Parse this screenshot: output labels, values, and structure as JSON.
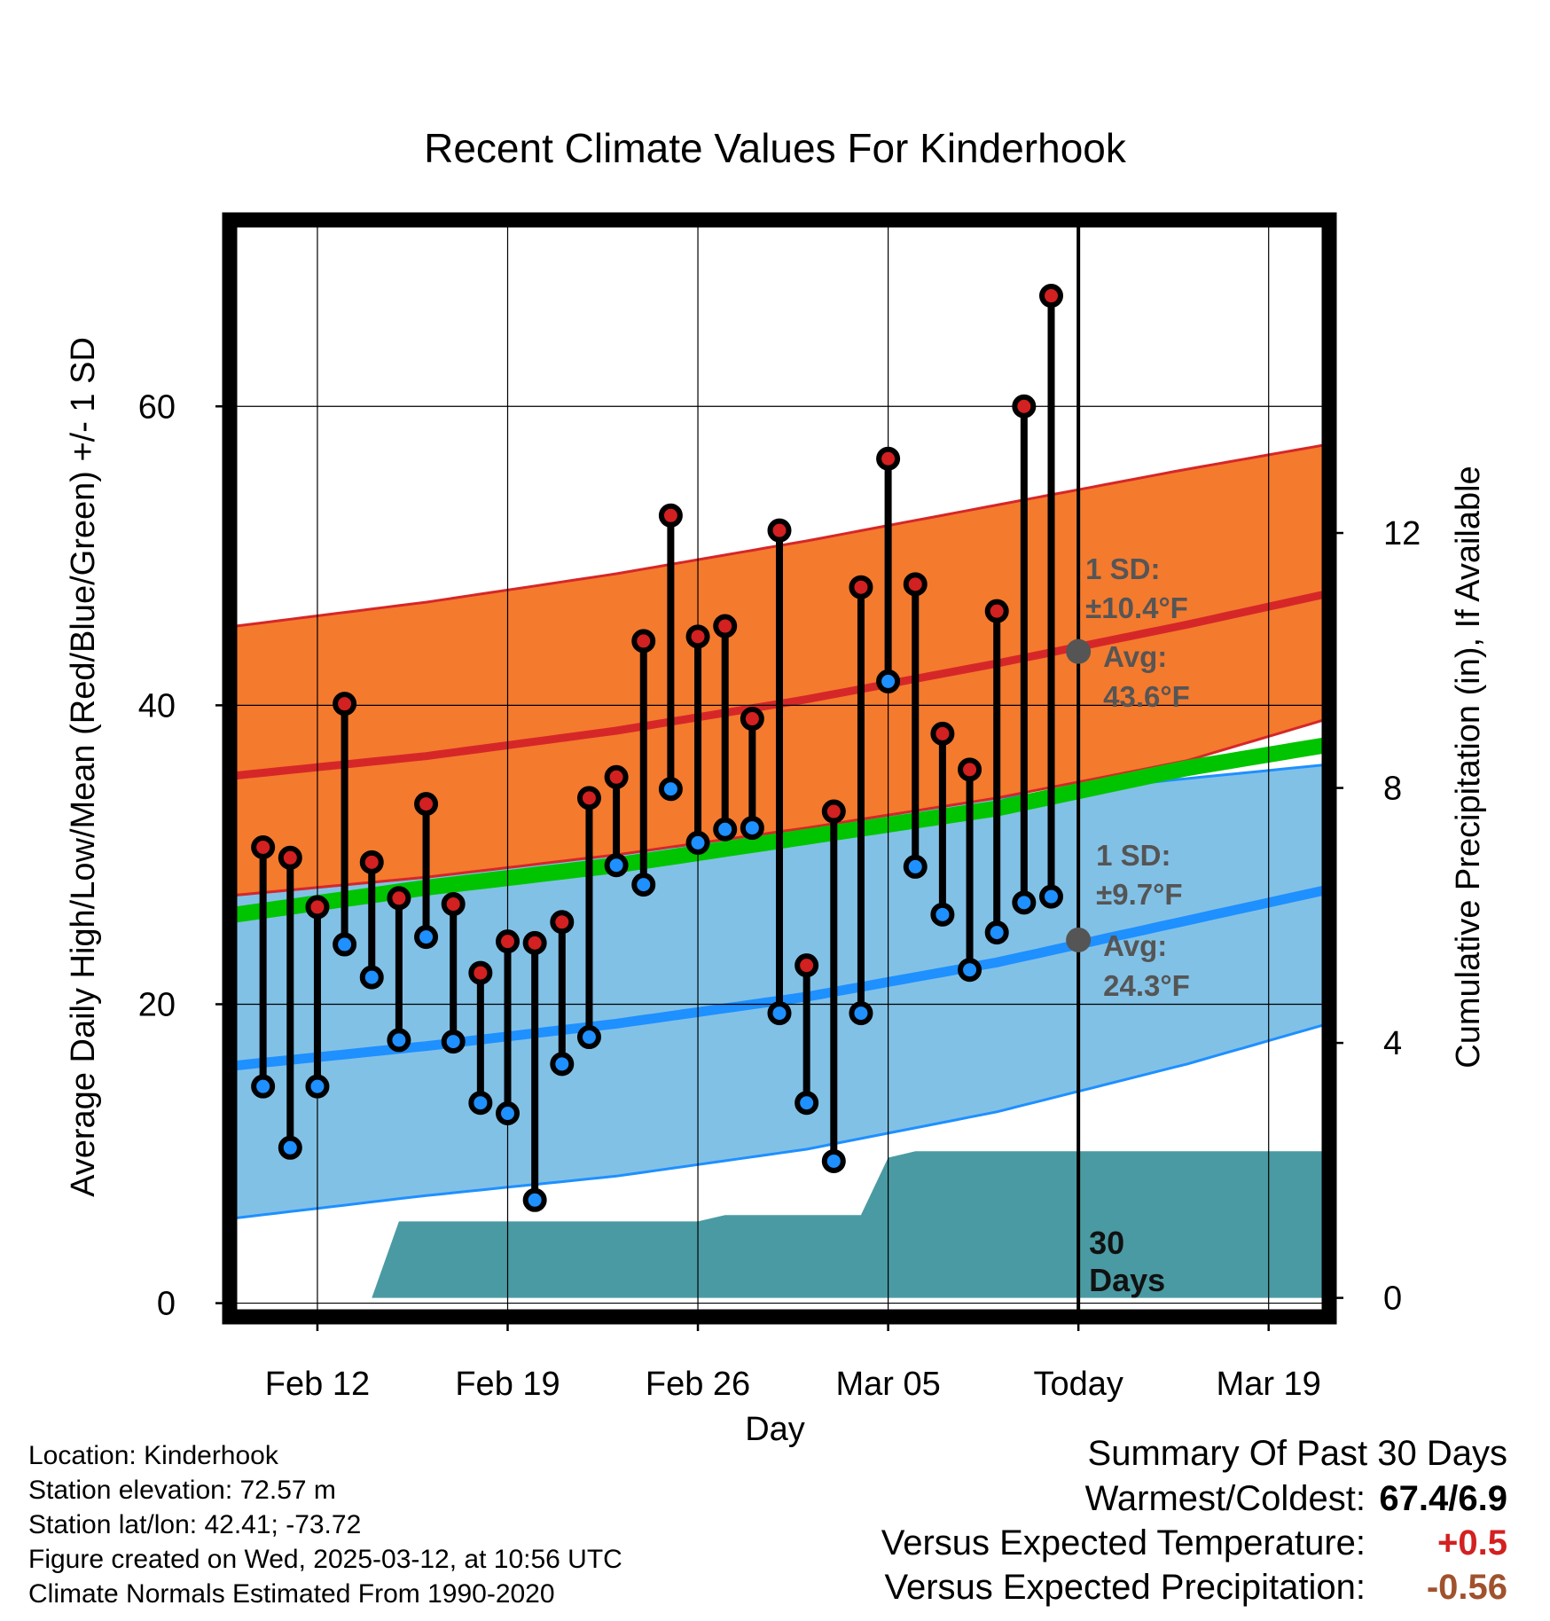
{
  "chart_data": {
    "type": "line",
    "title": "Recent Climate Values For Kinderhook",
    "xlabel": "Day",
    "ylabel": "Average Daily High/Low/Mean (Red/Blue/Green) +/- 1 SD",
    "y2label": "Cumulative Precipitation (in), If Available",
    "x_ticks": [
      "Feb 12",
      "Feb 19",
      "Feb 26",
      "Mar 05",
      "Today",
      "Mar 19"
    ],
    "x_tick_dates": [
      "2025-02-12",
      "2025-02-19",
      "2025-02-26",
      "2025-03-05",
      "2025-03-12",
      "2025-03-19"
    ],
    "xlim": [
      "2025-02-09",
      "2025-03-21"
    ],
    "ylim": [
      -0.5,
      72
    ],
    "y_ticks": [
      0,
      20,
      40,
      60
    ],
    "y2lim": [
      -0.2,
      16.8
    ],
    "y2_ticks": [
      0,
      4,
      8,
      12
    ],
    "grid": true,
    "today": "2025-03-12",
    "daily": {
      "dates": [
        "2025-02-10",
        "2025-02-11",
        "2025-02-12",
        "2025-02-13",
        "2025-02-14",
        "2025-02-15",
        "2025-02-16",
        "2025-02-17",
        "2025-02-18",
        "2025-02-19",
        "2025-02-20",
        "2025-02-21",
        "2025-02-22",
        "2025-02-23",
        "2025-02-24",
        "2025-02-25",
        "2025-02-26",
        "2025-02-27",
        "2025-02-28",
        "2025-03-01",
        "2025-03-02",
        "2025-03-03",
        "2025-03-04",
        "2025-03-05",
        "2025-03-06",
        "2025-03-07",
        "2025-03-08",
        "2025-03-09",
        "2025-03-10",
        "2025-03-11"
      ],
      "high": [
        30.5,
        29.8,
        26.5,
        40.1,
        29.5,
        27.1,
        33.4,
        26.7,
        22.1,
        24.2,
        24.1,
        25.5,
        33.8,
        35.2,
        44.3,
        52.7,
        44.6,
        45.3,
        39.1,
        51.7,
        22.6,
        32.9,
        47.9,
        56.5,
        48.1,
        38.1,
        35.7,
        46.3,
        60.0,
        67.4
      ],
      "low": [
        14.5,
        10.4,
        14.5,
        24.0,
        21.8,
        17.6,
        24.5,
        17.5,
        13.4,
        12.7,
        6.9,
        16.0,
        17.8,
        29.3,
        28.0,
        34.4,
        30.8,
        31.7,
        31.8,
        19.4,
        13.4,
        9.5,
        19.4,
        41.6,
        29.2,
        26.0,
        22.3,
        24.8,
        26.8,
        27.2
      ]
    },
    "normals": {
      "dates": [
        "2025-02-09",
        "2025-02-16",
        "2025-02-23",
        "2025-03-02",
        "2025-03-09",
        "2025-03-16",
        "2025-03-21"
      ],
      "high_avg": [
        35.3,
        36.6,
        38.3,
        40.4,
        42.8,
        45.4,
        47.4
      ],
      "high_sd_upper": [
        45.3,
        46.9,
        48.8,
        51.0,
        53.4,
        55.8,
        57.4
      ],
      "high_sd_lower": [
        27.3,
        28.5,
        30.0,
        31.8,
        33.8,
        36.3,
        39.0
      ],
      "low_avg": [
        15.9,
        17.2,
        18.7,
        20.5,
        22.8,
        25.6,
        27.6
      ],
      "low_sd_upper": [
        27.3,
        28.5,
        30.0,
        31.8,
        33.8,
        35.1,
        36.0
      ],
      "low_sd_lower": [
        5.7,
        7.2,
        8.5,
        10.3,
        12.8,
        16.0,
        18.6
      ],
      "mean_avg": [
        26.0,
        27.8,
        29.3,
        31.2,
        33.1,
        35.8,
        37.3
      ]
    },
    "precip_cumulative": {
      "dates": [
        "2025-02-09",
        "2025-02-14",
        "2025-02-15",
        "2025-02-26",
        "2025-02-27",
        "2025-03-04",
        "2025-03-05",
        "2025-03-06",
        "2025-03-21"
      ],
      "values": [
        0.0,
        0.0,
        1.2,
        1.2,
        1.3,
        1.3,
        2.2,
        2.3,
        2.3
      ]
    },
    "annotations": {
      "high_sd": "1 SD:",
      "high_sd_value": "±10.4°F",
      "high_avg_label": "Avg:",
      "high_avg_value": "43.6°F",
      "high_avg_marker": 43.6,
      "low_sd": "1 SD:",
      "low_sd_value": "±9.7°F",
      "low_avg_label": "Avg:",
      "low_avg_value": "24.3°F",
      "low_avg_marker": 24.3,
      "period_line1": "30",
      "period_line2": "Days"
    },
    "colors": {
      "high_band": "#f47a2e",
      "high_line": "#d62728",
      "low_band": "#82c1e6",
      "low_line": "#1e90ff",
      "mean_line": "#00c400",
      "precip": "#4a9aa3",
      "high_dot": "#d32020",
      "low_dot": "#1e90ff",
      "annotation_text": "#555555",
      "avg_marker": "#555555"
    }
  },
  "info": {
    "location": "Location: Kinderhook",
    "elevation": "Station elevation: 72.57 m",
    "latlon": "Station lat/lon: 42.41; -73.72",
    "created": "Figure created on Wed, 2025-03-12, at 10:56 UTC",
    "normals": "Climate Normals Estimated From 1990-2020"
  },
  "summary": {
    "title": "Summary Of Past 30 Days",
    "warmest_label": "Warmest/Coldest:",
    "warmest_value": "67.4/6.9",
    "temp_label": "Versus Expected Temperature:",
    "temp_value": "+0.5",
    "precip_label": "Versus Expected Precipitation:",
    "precip_value": "-0.56"
  }
}
